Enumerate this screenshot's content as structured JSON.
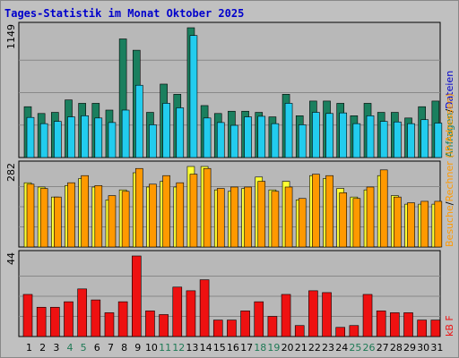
{
  "title": "Tages-Statistik im Monat Oktober 2025",
  "colors": {
    "background": "#c0c0c0",
    "panel": "#b8b8b8",
    "title": "#0000cc",
    "hits": "#1a7f5e",
    "files": "#22ccee",
    "sites": "#ffff33",
    "visits": "#ff9900",
    "kbytes": "#ee1111",
    "weekday_label": "#000000",
    "weekend_label": "#1e7a55"
  },
  "chart_data": [
    {
      "type": "bar",
      "panel": "top",
      "ymax_label": "1149",
      "ymax": 1149,
      "categories": [
        "1",
        "2",
        "3",
        "4",
        "5",
        "6",
        "7",
        "8",
        "9",
        "10",
        "11",
        "12",
        "13",
        "14",
        "15",
        "16",
        "17",
        "18",
        "19",
        "20",
        "21",
        "22",
        "23",
        "24",
        "25",
        "26",
        "27",
        "28",
        "29",
        "30",
        "31"
      ],
      "series": [
        {
          "name": "Anfragen",
          "color": "#1a7f5e",
          "values": [
            450,
            390,
            400,
            510,
            480,
            480,
            420,
            1050,
            950,
            400,
            650,
            560,
            1149,
            460,
            390,
            410,
            410,
            400,
            360,
            560,
            370,
            500,
            500,
            480,
            370,
            480,
            400,
            400,
            350,
            450,
            500
          ]
        },
        {
          "name": "Dateien",
          "color": "#22ccee",
          "values": [
            355,
            300,
            320,
            360,
            370,
            350,
            310,
            420,
            640,
            290,
            480,
            440,
            1080,
            350,
            310,
            285,
            360,
            365,
            300,
            480,
            290,
            400,
            390,
            395,
            300,
            370,
            320,
            315,
            300,
            335,
            305
          ]
        }
      ],
      "right_label": [
        {
          "text": "Anfragen",
          "color": "#1a7f5e"
        },
        {
          "text": "/",
          "color": "#000000"
        },
        {
          "text": "Dateien",
          "color": "#0000cc"
        }
      ]
    },
    {
      "type": "bar",
      "panel": "middle",
      "ymax_label": "282",
      "ymax": 282,
      "categories": [
        "1",
        "2",
        "3",
        "4",
        "5",
        "6",
        "7",
        "8",
        "9",
        "10",
        "11",
        "12",
        "13",
        "14",
        "15",
        "16",
        "17",
        "18",
        "19",
        "20",
        "21",
        "22",
        "23",
        "24",
        "25",
        "26",
        "27",
        "28",
        "29",
        "30",
        "31"
      ],
      "series": [
        {
          "name": "Rechner (IP-Adressen)",
          "color": "#ffff33",
          "values": [
            225,
            210,
            175,
            215,
            240,
            210,
            165,
            200,
            260,
            210,
            230,
            210,
            282,
            282,
            200,
            195,
            205,
            245,
            200,
            230,
            165,
            250,
            240,
            205,
            175,
            200,
            250,
            180,
            150,
            150,
            150
          ]
        },
        {
          "name": "Besuche",
          "color": "#ff9900",
          "values": [
            220,
            205,
            175,
            225,
            250,
            215,
            180,
            195,
            275,
            220,
            250,
            225,
            255,
            275,
            205,
            210,
            210,
            230,
            195,
            210,
            170,
            255,
            250,
            190,
            170,
            210,
            270,
            175,
            155,
            160,
            160
          ]
        }
      ],
      "right_label": [
        {
          "text": "Besuche",
          "color": "#ff9900"
        },
        {
          "text": "/",
          "color": "#000000"
        },
        {
          "text": "Rechner (IP-Adressen)",
          "color": "#ff9900"
        }
      ]
    },
    {
      "type": "bar",
      "panel": "bottom",
      "ymax_label": "44",
      "ymax": 44,
      "categories": [
        "1",
        "2",
        "3",
        "4",
        "5",
        "6",
        "7",
        "8",
        "9",
        "10",
        "11",
        "12",
        "13",
        "14",
        "15",
        "16",
        "17",
        "18",
        "19",
        "20",
        "21",
        "22",
        "23",
        "24",
        "25",
        "26",
        "27",
        "28",
        "29",
        "30",
        "31"
      ],
      "series": [
        {
          "name": "kB F",
          "color": "#ee1111",
          "values": [
            23,
            16,
            16,
            19,
            26,
            20,
            13,
            19,
            44,
            14,
            12,
            27,
            25,
            31,
            9,
            9,
            14,
            19,
            11,
            23,
            6,
            25,
            24,
            5,
            6,
            23,
            14,
            13,
            13,
            9,
            9
          ]
        }
      ],
      "right_label": [
        {
          "text": "kB F",
          "color": "#ee1111"
        }
      ]
    }
  ],
  "weekend_days": [
    "4",
    "5",
    "11",
    "12",
    "18",
    "19",
    "25",
    "26"
  ]
}
